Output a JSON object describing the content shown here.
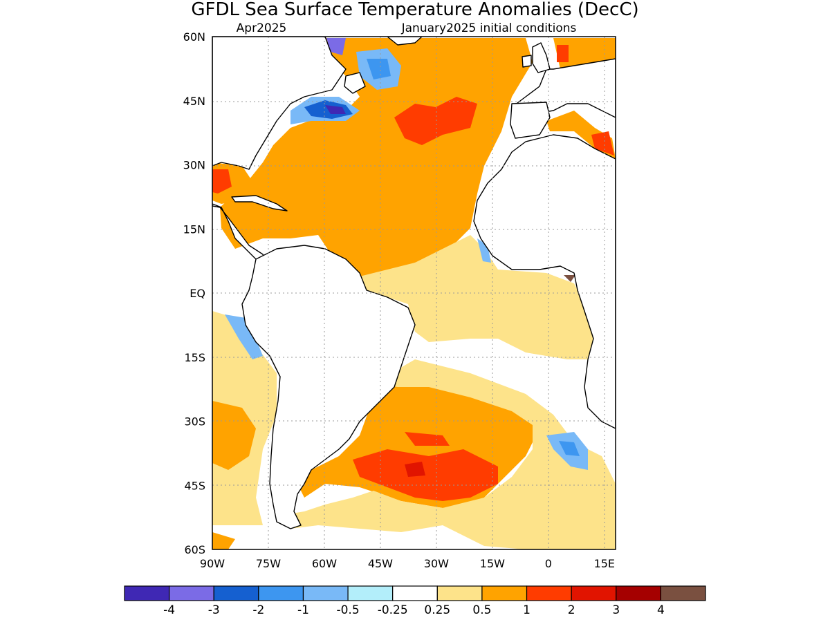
{
  "title": "GFDL Sea Surface Temperature Anomalies (DecC)",
  "subtitle_left": "Apr2025",
  "subtitle_right": "January2025 initial conditions",
  "map": {
    "lon_range": [
      -90,
      18
    ],
    "lat_range": [
      -60,
      60
    ],
    "lat_ticks": [
      {
        "value": 60,
        "label": "60N"
      },
      {
        "value": 45,
        "label": "45N"
      },
      {
        "value": 30,
        "label": "30N"
      },
      {
        "value": 15,
        "label": "15N"
      },
      {
        "value": 0,
        "label": "EQ"
      },
      {
        "value": -15,
        "label": "15S"
      },
      {
        "value": -30,
        "label": "30S"
      },
      {
        "value": -45,
        "label": "45S"
      },
      {
        "value": -60,
        "label": "60S"
      }
    ],
    "lon_ticks": [
      {
        "value": -90,
        "label": "90W"
      },
      {
        "value": -75,
        "label": "75W"
      },
      {
        "value": -60,
        "label": "60W"
      },
      {
        "value": -45,
        "label": "45W"
      },
      {
        "value": -30,
        "label": "30W"
      },
      {
        "value": -15,
        "label": "15W"
      },
      {
        "value": 0,
        "label": "0"
      },
      {
        "value": 15,
        "label": "15E"
      }
    ],
    "grid": "dotted"
  },
  "colorbar": {
    "colors": [
      "#3f28b4",
      "#7b6be6",
      "#1560d0",
      "#3d96f0",
      "#79b9f7",
      "#b3eefa",
      "#ffffff",
      "#fde38a",
      "#ffa300",
      "#ff3c00",
      "#e11400",
      "#a50000",
      "#7a5040"
    ],
    "labels": [
      "-4",
      "-3",
      "-2",
      "-1",
      "-0.5",
      "-0.25",
      "0.25",
      "0.5",
      "1",
      "2",
      "3",
      "4"
    ]
  }
}
